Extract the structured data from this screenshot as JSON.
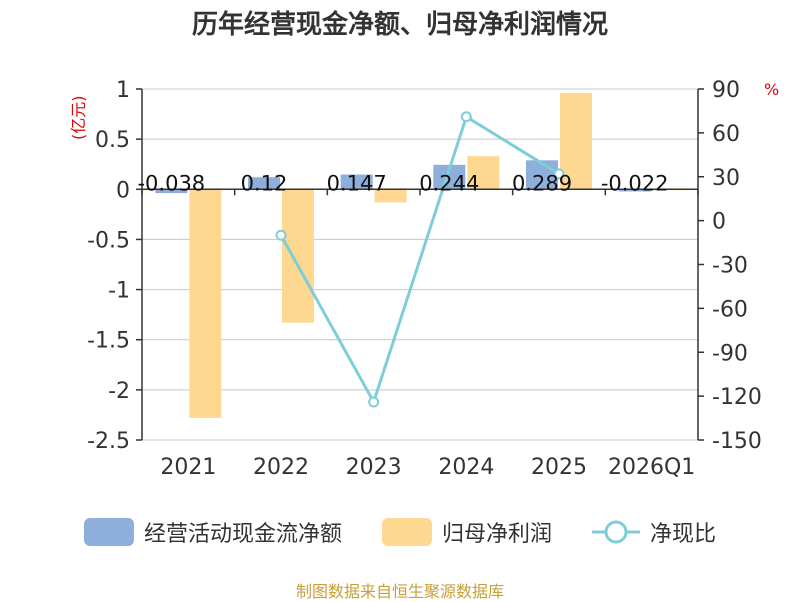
{
  "title": "历年经营现金净额、归母净利润情况",
  "left_unit": "(亿元)",
  "right_unit": "%",
  "source": "制图数据来自恒生聚源数据库",
  "colors": {
    "cash": "#8eafdc",
    "profit": "#fed891",
    "ratio": "#7fcdd8"
  },
  "chart_data": {
    "type": "bar",
    "categories": [
      "2021",
      "2022",
      "2023",
      "2024",
      "2025",
      "2026Q1"
    ],
    "series": [
      {
        "name": "经营活动现金流净额",
        "type": "bar",
        "axis": "left",
        "values": [
          -0.038,
          0.12,
          0.147,
          0.244,
          0.289,
          -0.022
        ],
        "labels": [
          "-0.038",
          "0.12",
          "0.147",
          "0.244",
          "0.289",
          "-0.022"
        ]
      },
      {
        "name": "归母净利润",
        "type": "bar",
        "axis": "left",
        "values": [
          -2.28,
          -1.33,
          -0.13,
          0.33,
          0.96,
          -0.01
        ]
      },
      {
        "name": "净现比",
        "type": "line",
        "axis": "right",
        "values": [
          null,
          -10,
          -124,
          71,
          32,
          null
        ]
      }
    ],
    "y_left": {
      "min": -2.5,
      "max": 1,
      "ticks": [
        "1",
        "0.5",
        "0",
        "-0.5",
        "-1",
        "-1.5",
        "-2",
        "-2.5"
      ]
    },
    "y_right": {
      "min": -150,
      "max": 90,
      "ticks": [
        "90",
        "60",
        "30",
        "0",
        "-30",
        "-60",
        "-90",
        "-120",
        "-150"
      ]
    },
    "grid": true,
    "legend_position": "bottom"
  }
}
